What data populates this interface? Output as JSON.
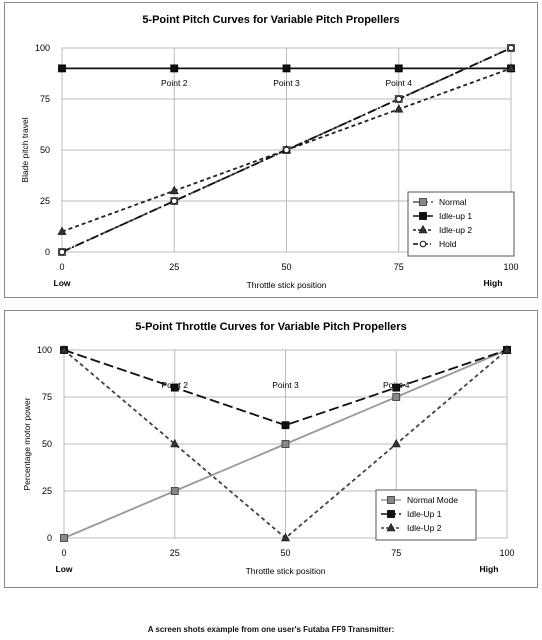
{
  "caption": "A screen shots example from one user's Futaba FF9 Transmitter:",
  "chart_data": [
    {
      "type": "line",
      "title": "5-Point Pitch Curves for Variable Pitch Propellers",
      "xlabel": "Throttle stick position",
      "ylabel": "Blade pitch travel",
      "xlim": [
        0,
        100
      ],
      "ylim": [
        0,
        100
      ],
      "x_ticks": [
        0,
        25,
        50,
        75,
        100
      ],
      "y_ticks": [
        0,
        25,
        50,
        75,
        100
      ],
      "x_end_labels": {
        "low": "Low",
        "high": "High"
      },
      "point_labels": [
        {
          "text": "Point 2",
          "x": 25
        },
        {
          "text": "Point 3",
          "x": 50
        },
        {
          "text": "Point 4",
          "x": 75
        }
      ],
      "legend_position": "bottom-right",
      "x": [
        0,
        25,
        50,
        75,
        100
      ],
      "series": [
        {
          "name": "Normal",
          "values": [
            0,
            25,
            50,
            75,
            100
          ],
          "marker": "square-gray",
          "dash": "long",
          "color": "#555555"
        },
        {
          "name": "Idle-up 1",
          "values": [
            90,
            90,
            90,
            90,
            90
          ],
          "marker": "square-black",
          "dash": "solid",
          "color": "#111111"
        },
        {
          "name": "Idle-up 2",
          "values": [
            10,
            30,
            50,
            70,
            90
          ],
          "marker": "triangle",
          "dash": "short",
          "color": "#222222"
        },
        {
          "name": "Hold",
          "values": [
            0,
            25,
            50,
            75,
            100
          ],
          "marker": "circle",
          "dash": "dashdot",
          "color": "#111111"
        }
      ]
    },
    {
      "type": "line",
      "title": "5-Point Throttle Curves for Variable Pitch Propellers",
      "xlabel": "Throttle stick position",
      "ylabel": "Percentage motor power",
      "xlim": [
        0,
        100
      ],
      "ylim": [
        0,
        100
      ],
      "x_ticks": [
        0,
        25,
        50,
        75,
        100
      ],
      "y_ticks": [
        0,
        25,
        50,
        75,
        100
      ],
      "x_end_labels": {
        "low": "Low",
        "high": "High"
      },
      "point_labels": [
        {
          "text": "Point 2",
          "x": 25
        },
        {
          "text": "Point 3",
          "x": 50
        },
        {
          "text": "Point 4",
          "x": 75
        }
      ],
      "legend_position": "bottom-right",
      "x": [
        0,
        25,
        50,
        75,
        100
      ],
      "series": [
        {
          "name": "Normal Mode",
          "values": [
            0,
            25,
            50,
            75,
            100
          ],
          "marker": "square-gray",
          "dash": "solid",
          "color": "#999999"
        },
        {
          "name": "Idle-Up 1",
          "values": [
            100,
            80,
            60,
            80,
            100
          ],
          "marker": "square-black",
          "dash": "long",
          "color": "#111111"
        },
        {
          "name": "Idle-Up 2",
          "values": [
            100,
            50,
            0,
            50,
            100
          ],
          "marker": "triangle",
          "dash": "short",
          "color": "#444444"
        }
      ]
    }
  ]
}
